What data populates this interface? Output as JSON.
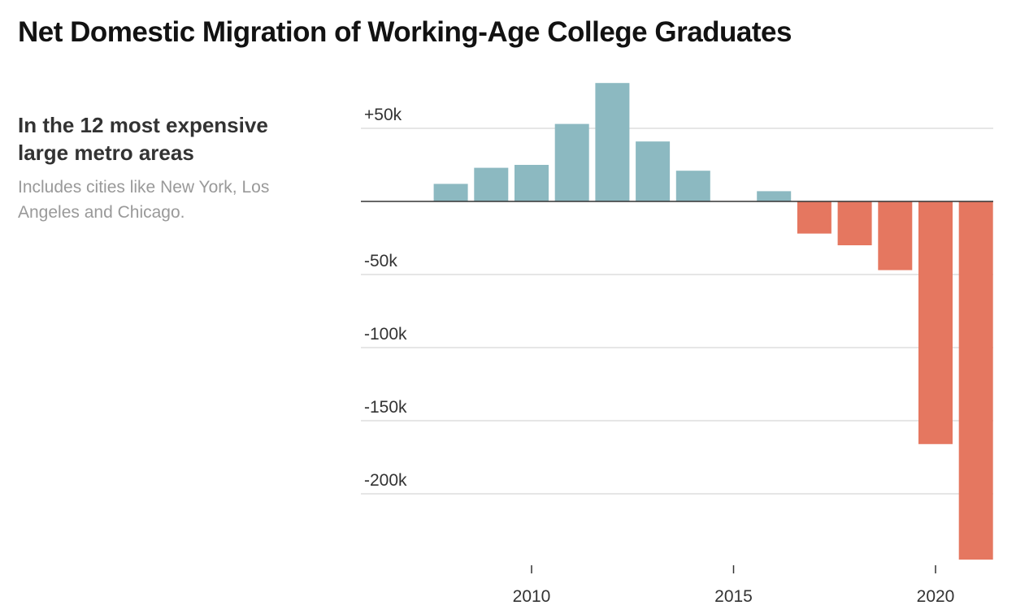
{
  "header": {
    "title": "Net Domestic Migration of Working-Age College Graduates"
  },
  "sidebar": {
    "subtitle": "In the 12 most expensive large metro areas",
    "note": "Includes cities like New York, Los Angeles and Chicago."
  },
  "chart_data": {
    "type": "bar",
    "x": [
      2008,
      2009,
      2010,
      2011,
      2012,
      2013,
      2014,
      2015,
      2016,
      2017,
      2018,
      2019,
      2020,
      2021
    ],
    "values": [
      12000,
      23000,
      25000,
      53000,
      81000,
      41000,
      21000,
      0,
      7000,
      -22000,
      -30000,
      -47000,
      -166000,
      -245000
    ],
    "title": "",
    "xlabel": "",
    "ylabel": "",
    "ylim": [
      -245000,
      82000
    ],
    "y_ticks": [
      {
        "value": 50000,
        "label": "+50k"
      },
      {
        "value": -50000,
        "label": "-50k"
      },
      {
        "value": -100000,
        "label": "-100k"
      },
      {
        "value": -150000,
        "label": "-150k"
      },
      {
        "value": -200000,
        "label": "-200k"
      }
    ],
    "x_ticks": [
      {
        "value": 2010,
        "label": "2010"
      },
      {
        "value": 2015,
        "label": "2015"
      },
      {
        "value": 2020,
        "label": "2020"
      }
    ],
    "colors": {
      "positive": "#8cb9c1",
      "negative": "#e57760",
      "gridline": "#e6e6e6",
      "zero_line": "#333333"
    },
    "grid": true,
    "legend": "none"
  }
}
